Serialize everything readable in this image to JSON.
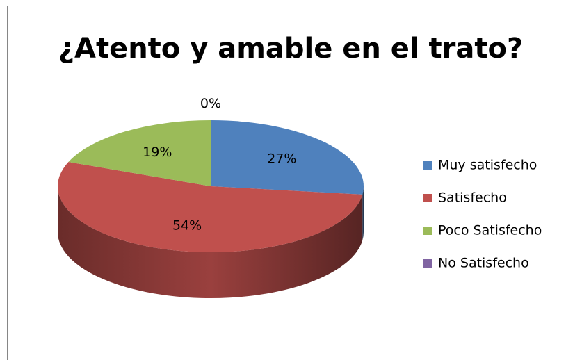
{
  "chart_data": {
    "type": "pie3d",
    "title": "¿Atento y amable en el trato?",
    "categories": [
      "Muy satisfecho",
      "Satisfecho",
      "Poco Satisfecho",
      "No Satisfecho"
    ],
    "values": [
      27,
      54,
      19,
      0
    ],
    "value_labels": [
      "27%",
      "54%",
      "19%",
      "0%"
    ],
    "colors": [
      "#4f81bd",
      "#c0504d",
      "#9bbb59",
      "#8064a2"
    ],
    "legend": "right"
  }
}
